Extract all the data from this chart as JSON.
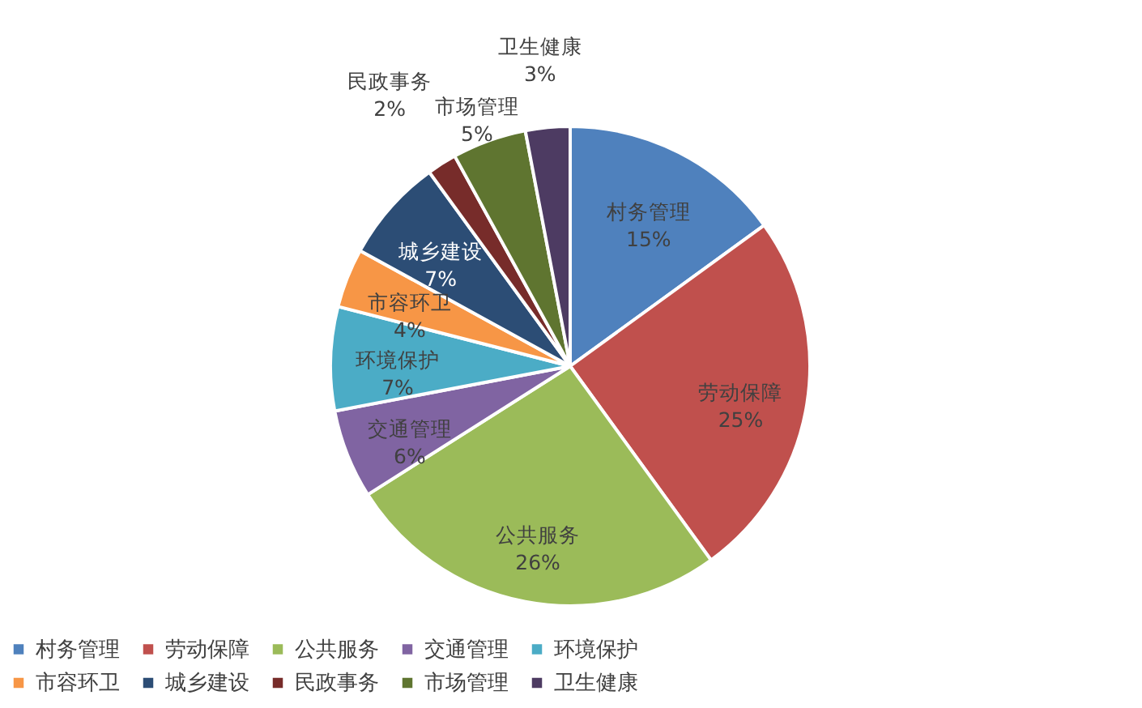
{
  "chart_data": {
    "type": "pie",
    "categories": [
      "村务管理",
      "劳动保障",
      "公共服务",
      "交通管理",
      "环境保护",
      "市容环卫",
      "城乡建设",
      "民政事务",
      "市场管理",
      "卫生健康"
    ],
    "values": [
      15,
      25,
      26,
      6,
      7,
      4,
      7,
      2,
      5,
      3
    ],
    "value_labels": [
      "15%",
      "25%",
      "26%",
      "6%",
      "7%",
      "4%",
      "7%",
      "2%",
      "5%",
      "3%"
    ],
    "colors": [
      "#4f81bd",
      "#c0504d",
      "#9bbb59",
      "#8064a2",
      "#4bacc6",
      "#f79646",
      "#2c4d75",
      "#772c2a",
      "#5f7530",
      "#4d3b62"
    ],
    "legend": "bottom"
  }
}
